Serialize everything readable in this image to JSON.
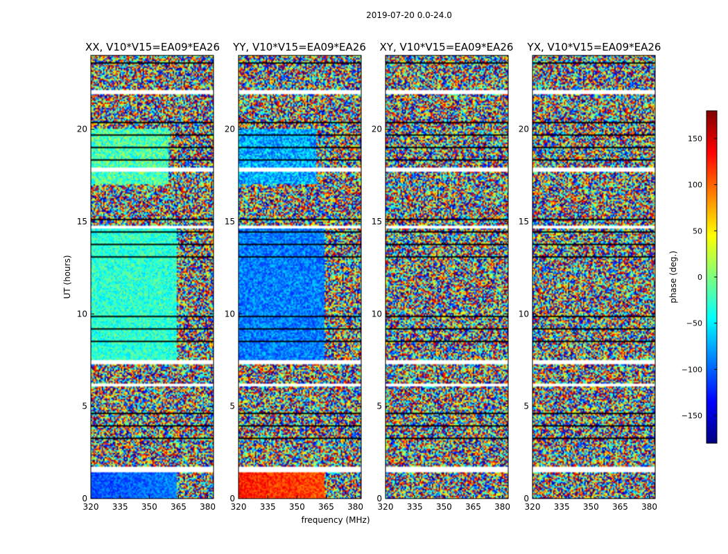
{
  "chart_data": {
    "type": "heatmap",
    "suptitle": "2019-07-20 0.0-24.0",
    "xlabel": "frequency (MHz)",
    "ylabel": "UT (hours)",
    "xlim": [
      320,
      383
    ],
    "ylim": [
      0,
      24
    ],
    "xticks": [
      320,
      335,
      350,
      365,
      380
    ],
    "yticks": [
      0,
      5,
      10,
      15,
      20
    ],
    "panels": [
      {
        "title": "XX, V10*V15=EA09*EA26",
        "pol": "XX"
      },
      {
        "title": "YY, V10*V15=EA09*EA26",
        "pol": "YY"
      },
      {
        "title": "XY, V10*V15=EA09*EA26",
        "pol": "XY"
      },
      {
        "title": "YX, V10*V15=EA09*EA26",
        "pol": "YX"
      }
    ],
    "flagged_ut_ranges": [
      [
        1.45,
        1.75
      ],
      [
        6.1,
        6.2
      ],
      [
        7.3,
        7.5
      ],
      [
        17.7,
        17.9
      ],
      [
        21.9,
        22.1
      ],
      [
        14.6,
        14.8
      ]
    ],
    "colorbar": {
      "label": "phase (deg.)",
      "range": [
        -180,
        180
      ],
      "ticks": [
        150,
        100,
        50,
        0,
        -50,
        -100,
        -150
      ],
      "tick_labels": [
        "150",
        "100",
        "50",
        "0",
        "−50",
        "−100",
        "−150"
      ],
      "colormap": [
        "#00007f",
        "#0000ff",
        "#007fff",
        "#00ffff",
        "#7fff7f",
        "#ffff00",
        "#ff7f00",
        "#ff0000",
        "#7f0000"
      ]
    }
  }
}
